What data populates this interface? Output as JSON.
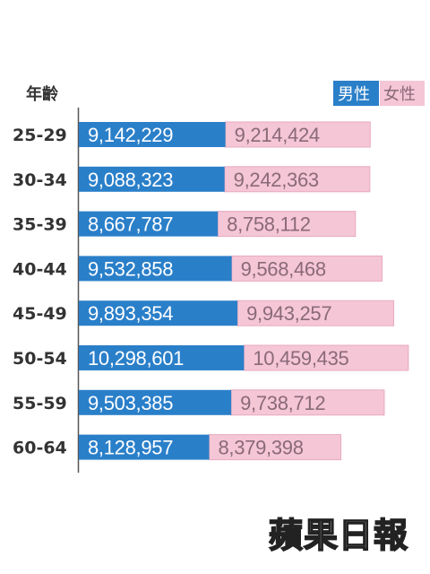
{
  "chart_data": {
    "type": "bar",
    "stacked": true,
    "orientation": "horizontal",
    "ylabel": "年齡",
    "categories": [
      "25-29",
      "30-34",
      "35-39",
      "40-44",
      "45-49",
      "50-54",
      "55-59",
      "60-64"
    ],
    "series": [
      {
        "name": "男性",
        "color": "#2a7fc9",
        "values": [
          9142229,
          9088323,
          8667787,
          9532858,
          9893354,
          10298601,
          9503385,
          8128957
        ],
        "labels": [
          "9,142,229",
          "9,088,323",
          "8,667,787",
          "9,532,858",
          "9,893,354",
          "10,298,601",
          "9,503,385",
          "8,128,957"
        ]
      },
      {
        "name": "女性",
        "color": "#f5c6d6",
        "values": [
          9214424,
          9242363,
          8758112,
          9568468,
          9943257,
          10459435,
          9738712,
          8379398
        ],
        "labels": [
          "9,214,424",
          "9,242,363",
          "8,758,112",
          "9,568,468",
          "9,943,257",
          "10,459,435",
          "9,738,712",
          "8,379,398"
        ]
      }
    ],
    "legend": "top-right",
    "grid": false
  },
  "logo_text": "蘋果日報"
}
